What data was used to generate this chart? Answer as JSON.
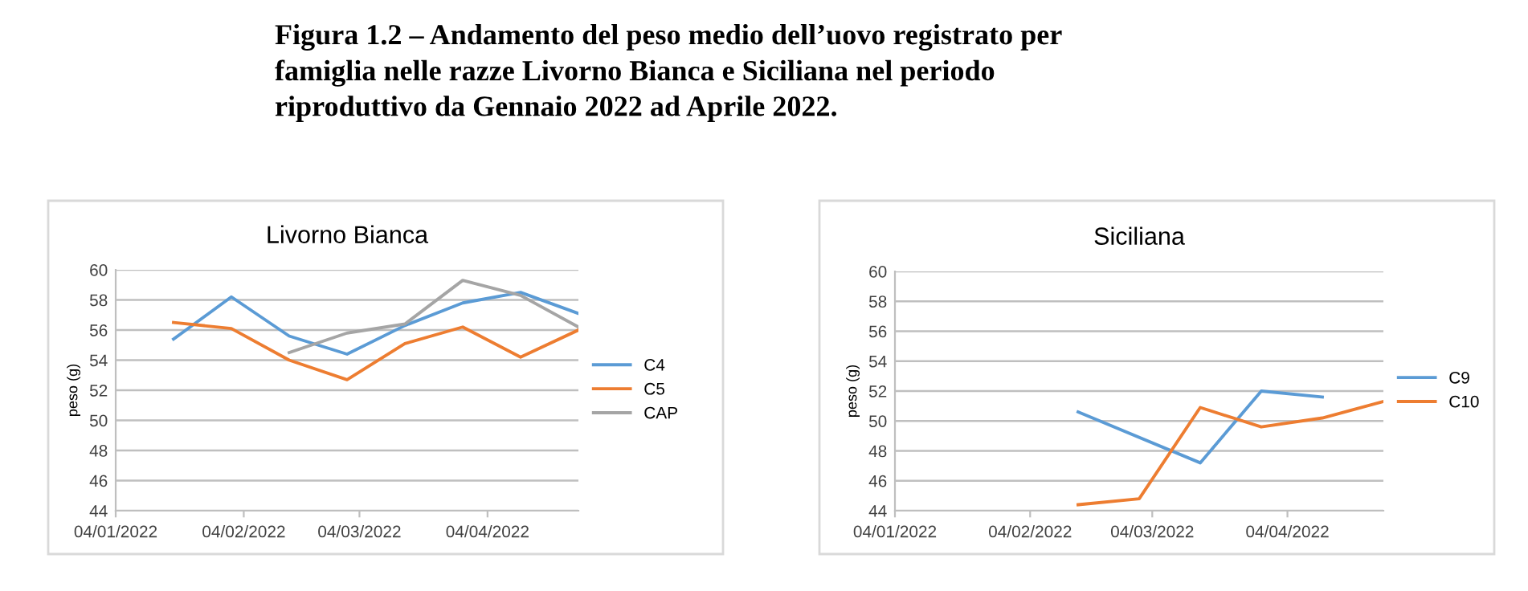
{
  "chart_data": [
    {
      "type": "line",
      "title": "Livorno Bianca",
      "ylabel": "peso (g)",
      "annotations": [
        "Figura 1.2 – Andamento del peso medio dell’uovo registrato per\nfamiglia nelle razze Livorno Bianca e Siciliana nel periodo\nriproduttivo da Gennaio 2022 ad Aprile 2022."
      ],
      "x": [
        "2022-01-18",
        "2022-02-01",
        "2022-02-15",
        "2022-03-01",
        "2022-03-15",
        "2022-03-29",
        "2022-04-12",
        "2022-04-26"
      ],
      "series": [
        {
          "name": "C4",
          "color": "#5b9bd5",
          "values": [
            55.4,
            58.2,
            55.6,
            54.4,
            56.3,
            57.8,
            58.5,
            57.1
          ]
        },
        {
          "name": "C5",
          "color": "#ed7d31",
          "values": [
            56.5,
            56.1,
            54.0,
            52.7,
            55.1,
            56.2,
            54.2,
            56.0
          ]
        },
        {
          "name": "CAP",
          "color": "#a5a5a5",
          "x": [
            "2022-02-15",
            "2022-03-01",
            "2022-03-15",
            "2022-03-29",
            "2022-04-12",
            "2022-04-26"
          ],
          "values": [
            54.5,
            55.8,
            56.4,
            59.3,
            58.3,
            56.2
          ]
        }
      ],
      "xlim": [
        "2022-01-04",
        "2022-04-26"
      ],
      "xticks": [
        {
          "value": "2022-01-04",
          "label": "04/01/2022"
        },
        {
          "value": "2022-02-04",
          "label": "04/02/2022"
        },
        {
          "value": "2022-03-04",
          "label": "04/03/2022"
        },
        {
          "value": "2022-04-04",
          "label": "04/04/2022"
        }
      ],
      "ylim": [
        44,
        60
      ],
      "yticks": [
        44,
        46,
        48,
        50,
        52,
        54,
        56,
        58,
        60
      ],
      "grid": "y",
      "legend": "right",
      "marker": "none",
      "line_style": "solid"
    },
    {
      "type": "line",
      "title": "Siciliana",
      "ylabel": "peso (g)",
      "series": [
        {
          "name": "C9",
          "color": "#5b9bd5",
          "x": [
            "2022-02-15",
            "2022-03-15",
            "2022-03-29",
            "2022-04-12"
          ],
          "values": [
            50.6,
            47.2,
            52.0,
            51.6
          ]
        },
        {
          "name": "C10",
          "color": "#ed7d31",
          "x": [
            "2022-02-15",
            "2022-03-01",
            "2022-03-15",
            "2022-03-29",
            "2022-04-12",
            "2022-04-26"
          ],
          "values": [
            44.4,
            44.8,
            50.9,
            49.6,
            50.2,
            51.3
          ]
        }
      ],
      "xlim": [
        "2022-01-04",
        "2022-04-26"
      ],
      "xticks": [
        {
          "value": "2022-01-04",
          "label": "04/01/2022"
        },
        {
          "value": "2022-02-04",
          "label": "04/02/2022"
        },
        {
          "value": "2022-03-04",
          "label": "04/03/2022"
        },
        {
          "value": "2022-04-04",
          "label": "04/04/2022"
        }
      ],
      "ylim": [
        44,
        60
      ],
      "yticks": [
        44,
        46,
        48,
        50,
        52,
        54,
        56,
        58,
        60
      ],
      "grid": "y",
      "legend": "right",
      "marker": "none",
      "line_style": "solid"
    }
  ]
}
